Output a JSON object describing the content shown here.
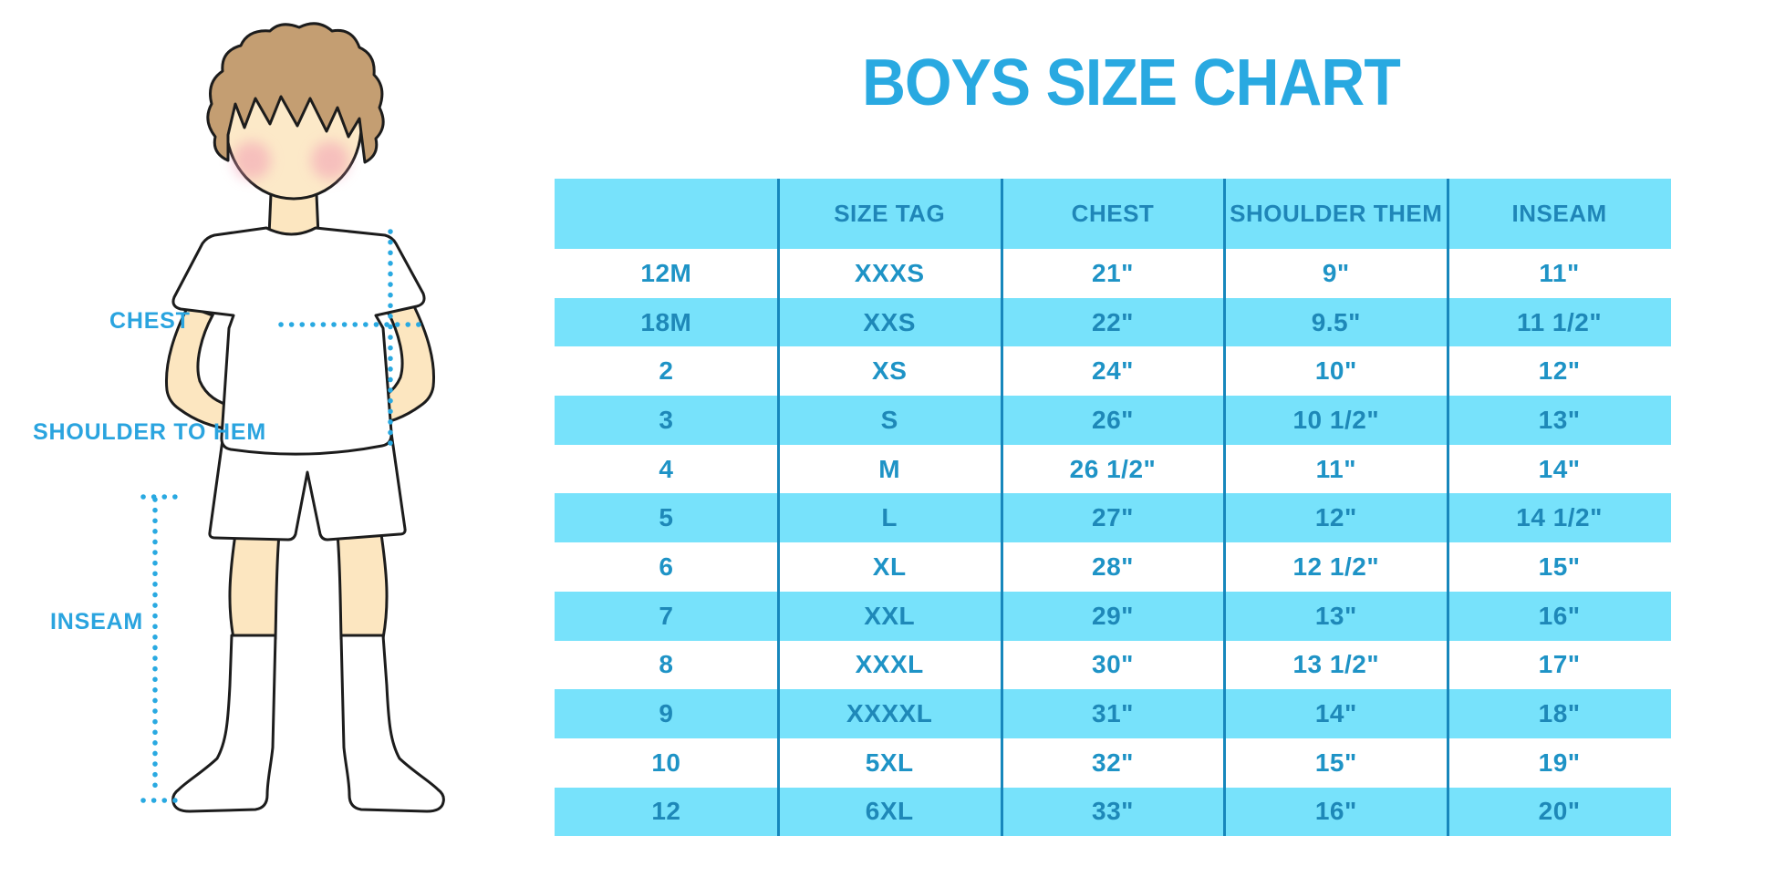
{
  "title": "BOYS SIZE CHART",
  "figure": {
    "labels": {
      "chest": "CHEST",
      "shoulder_to_hem": "SHOULDER TO HEM",
      "inseam": "INSEAM"
    },
    "illustration": "boy-in-white-tshirt-shorts-and-knee-socks-with-measurement-dotted-lines"
  },
  "colors": {
    "accent_blue": "#29A9E1",
    "stripe_cyan": "#77E2FB",
    "header_text": "#1F86B8",
    "body_text": "#1E93C6",
    "separator": "#1787BC",
    "skin": "#FCE6C0",
    "hair": "#C49E72",
    "outline": "#1C1C1C",
    "cheek": "#F29EB4"
  },
  "chart_data": {
    "type": "table",
    "title": "BOYS SIZE CHART",
    "columns": [
      "",
      "SIZE TAG",
      "CHEST",
      "SHOULDER THEM",
      "INSEAM"
    ],
    "rows": [
      [
        "12M",
        "XXXS",
        "21\"",
        "9\"",
        "11\""
      ],
      [
        "18M",
        "XXS",
        "22\"",
        "9.5\"",
        "11 1/2\""
      ],
      [
        "2",
        "XS",
        "24\"",
        "10\"",
        "12\""
      ],
      [
        "3",
        "S",
        "26\"",
        "10 1/2\"",
        "13\""
      ],
      [
        "4",
        "M",
        "26 1/2\"",
        "11\"",
        "14\""
      ],
      [
        "5",
        "L",
        "27\"",
        "12\"",
        "14 1/2\""
      ],
      [
        "6",
        "XL",
        "28\"",
        "12 1/2\"",
        "15\""
      ],
      [
        "7",
        "XXL",
        "29\"",
        "13\"",
        "16\""
      ],
      [
        "8",
        "XXXL",
        "30\"",
        "13 1/2\"",
        "17\""
      ],
      [
        "9",
        "XXXXL",
        "31\"",
        "14\"",
        "18\""
      ],
      [
        "10",
        "5XL",
        "32\"",
        "15\"",
        "19\""
      ],
      [
        "12",
        "6XL",
        "33\"",
        "16\"",
        "20\""
      ]
    ],
    "layout_hints": {
      "striped_rows": "alternating white and cyan, header cyan",
      "column_separators": true,
      "first_column": "age size (months/years)"
    }
  }
}
